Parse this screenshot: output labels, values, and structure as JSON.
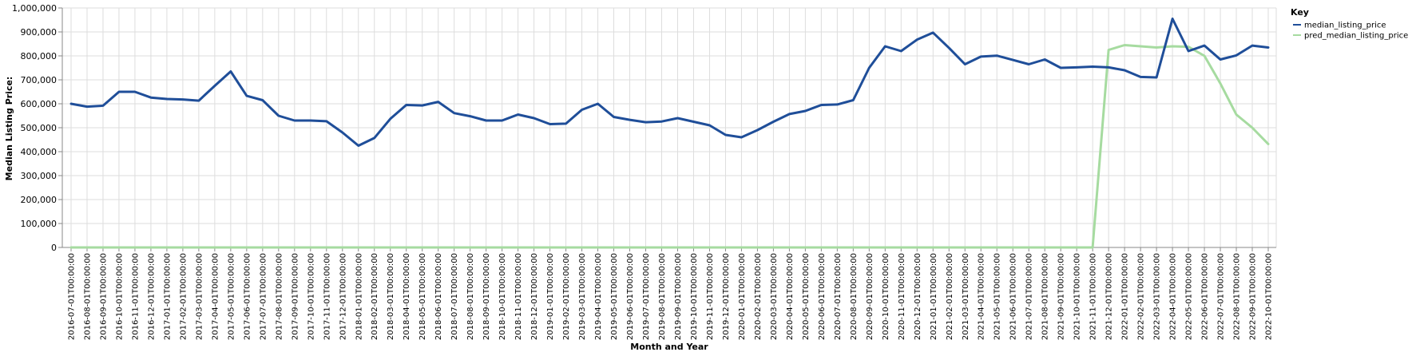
{
  "chart_data": {
    "type": "line",
    "xlabel": "Month and Year",
    "ylabel": "Median Listing Price:",
    "ylim": [
      0,
      1000000
    ],
    "yticks": [
      "0",
      "100,000",
      "200,000",
      "300,000",
      "400,000",
      "500,000",
      "600,000",
      "700,000",
      "800,000",
      "900,000",
      "1,000,000"
    ],
    "grid": true,
    "legend": {
      "title": "Key",
      "placement": "top-right"
    },
    "x": [
      "2016-07-01T00:00:00",
      "2016-08-01T00:00:00",
      "2016-09-01T00:00:00",
      "2016-10-01T00:00:00",
      "2016-11-01T00:00:00",
      "2016-12-01T00:00:00",
      "2017-01-01T00:00:00",
      "2017-02-01T00:00:00",
      "2017-03-01T00:00:00",
      "2017-04-01T00:00:00",
      "2017-05-01T00:00:00",
      "2017-06-01T00:00:00",
      "2017-07-01T00:00:00",
      "2017-08-01T00:00:00",
      "2017-09-01T00:00:00",
      "2017-10-01T00:00:00",
      "2017-11-01T00:00:00",
      "2017-12-01T00:00:00",
      "2018-01-01T00:00:00",
      "2018-02-01T00:00:00",
      "2018-03-01T00:00:00",
      "2018-04-01T00:00:00",
      "2018-05-01T00:00:00",
      "2018-06-01T00:00:00",
      "2018-07-01T00:00:00",
      "2018-08-01T00:00:00",
      "2018-09-01T00:00:00",
      "2018-10-01T00:00:00",
      "2018-11-01T00:00:00",
      "2018-12-01T00:00:00",
      "2019-01-01T00:00:00",
      "2019-02-01T00:00:00",
      "2019-03-01T00:00:00",
      "2019-04-01T00:00:00",
      "2019-05-01T00:00:00",
      "2019-06-01T00:00:00",
      "2019-07-01T00:00:00",
      "2019-08-01T00:00:00",
      "2019-09-01T00:00:00",
      "2019-10-01T00:00:00",
      "2019-11-01T00:00:00",
      "2019-12-01T00:00:00",
      "2020-01-01T00:00:00",
      "2020-02-01T00:00:00",
      "2020-03-01T00:00:00",
      "2020-04-01T00:00:00",
      "2020-05-01T00:00:00",
      "2020-06-01T00:00:00",
      "2020-07-01T00:00:00",
      "2020-08-01T00:00:00",
      "2020-09-01T00:00:00",
      "2020-10-01T00:00:00",
      "2020-11-01T00:00:00",
      "2020-12-01T00:00:00",
      "2021-01-01T00:00:00",
      "2021-02-01T00:00:00",
      "2021-03-01T00:00:00",
      "2021-04-01T00:00:00",
      "2021-05-01T00:00:00",
      "2021-06-01T00:00:00",
      "2021-07-01T00:00:00",
      "2021-08-01T00:00:00",
      "2021-09-01T00:00:00",
      "2021-10-01T00:00:00",
      "2021-11-01T00:00:00",
      "2021-12-01T00:00:00",
      "2022-01-01T00:00:00",
      "2022-02-01T00:00:00",
      "2022-03-01T00:00:00",
      "2022-04-01T00:00:00",
      "2022-05-01T00:00:00",
      "2022-06-01T00:00:00",
      "2022-07-01T00:00:00",
      "2022-08-01T00:00:00",
      "2022-09-01T00:00:00",
      "2022-10-01T00:00:00"
    ],
    "series": [
      {
        "name": "median_listing_price",
        "color": "#1f4e99",
        "values": [
          600000,
          588000,
          592000,
          650000,
          650000,
          626000,
          620000,
          618000,
          613000,
          675000,
          735000,
          633000,
          615000,
          550000,
          530000,
          530000,
          527000,
          480000,
          425000,
          457000,
          537000,
          595000,
          593000,
          608000,
          561000,
          548000,
          530000,
          530000,
          555000,
          540000,
          515000,
          517000,
          575000,
          600000,
          545000,
          533000,
          523000,
          526000,
          540000,
          525000,
          510000,
          470000,
          460000,
          490000,
          525000,
          557000,
          570000,
          595000,
          597000,
          615000,
          750000,
          840000,
          820000,
          868000,
          897000,
          833000,
          765000,
          797000,
          801000,
          783000,
          765000,
          785000,
          750000,
          752000,
          755000,
          752000,
          740000,
          712000,
          710000,
          955000,
          820000,
          843000,
          785000,
          802000,
          843000,
          835000
        ]
      },
      {
        "name": "pred_median_listing_price",
        "color": "#a6dba0",
        "values": [
          0,
          0,
          0,
          0,
          0,
          0,
          0,
          0,
          0,
          0,
          0,
          0,
          0,
          0,
          0,
          0,
          0,
          0,
          0,
          0,
          0,
          0,
          0,
          0,
          0,
          0,
          0,
          0,
          0,
          0,
          0,
          0,
          0,
          0,
          0,
          0,
          0,
          0,
          0,
          0,
          0,
          0,
          0,
          0,
          0,
          0,
          0,
          0,
          0,
          0,
          0,
          0,
          0,
          0,
          0,
          0,
          0,
          0,
          0,
          0,
          0,
          0,
          0,
          0,
          0,
          825000,
          845000,
          840000,
          835000,
          840000,
          838000,
          800000,
          685000,
          555000,
          500000,
          432000
        ]
      }
    ]
  }
}
